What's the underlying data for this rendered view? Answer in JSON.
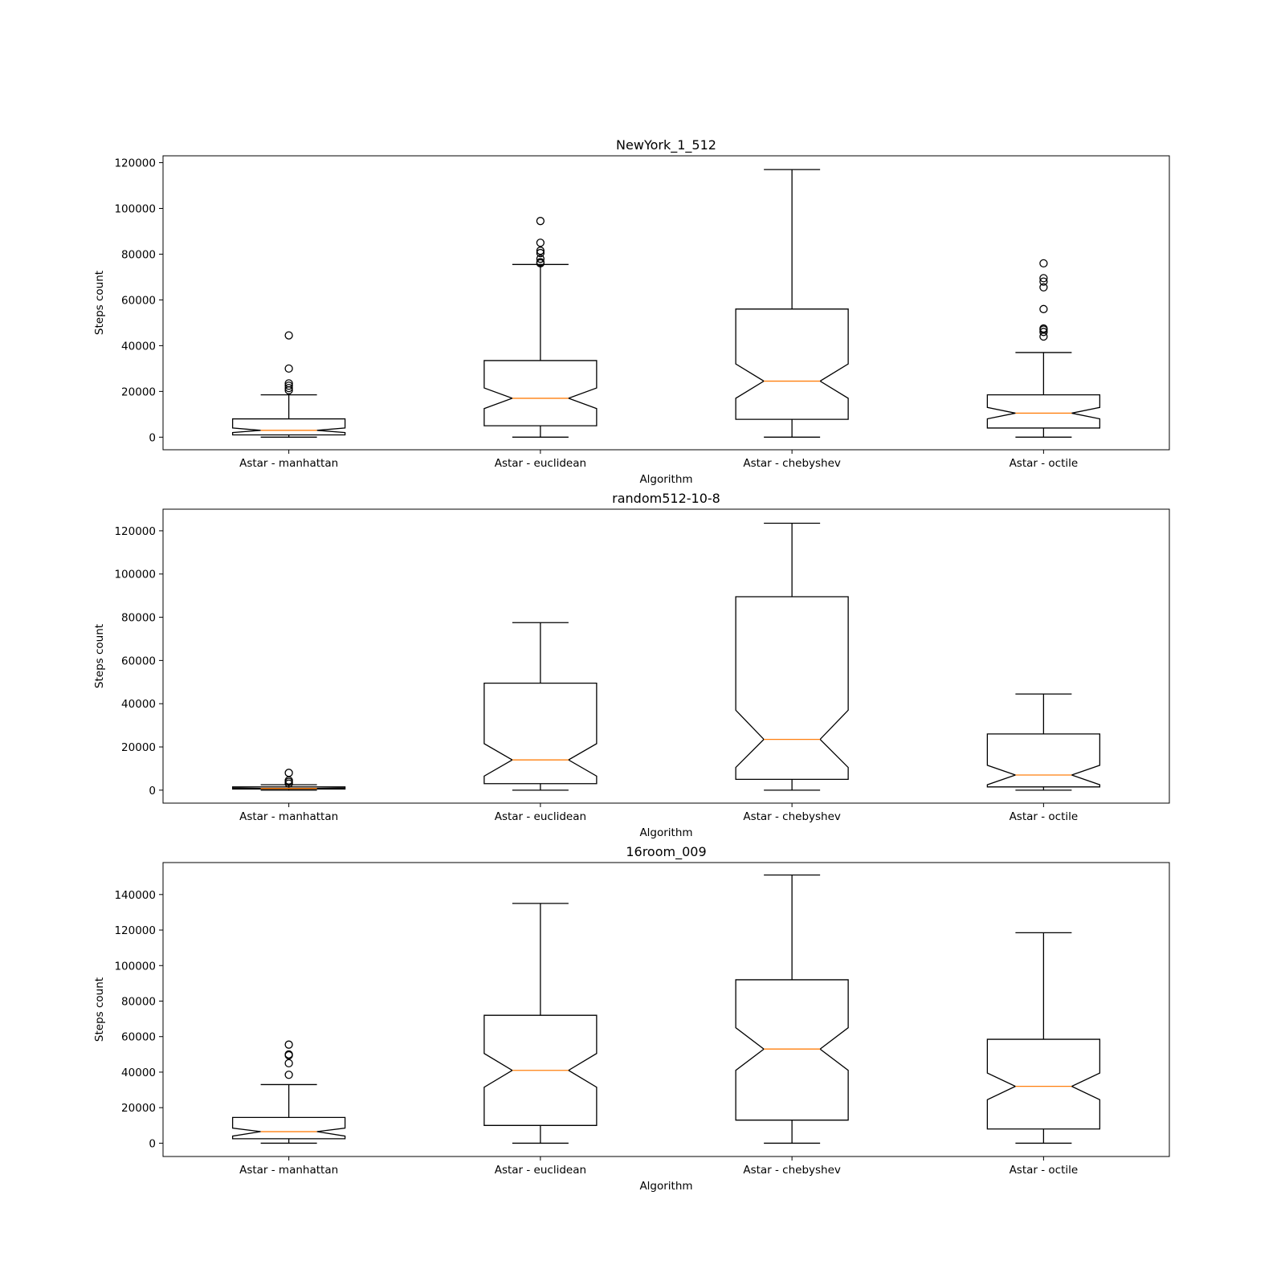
{
  "chart_data": [
    {
      "type": "boxplot",
      "title": "NewYork_1_512",
      "xlabel": "Algorithm",
      "ylabel": "Steps count",
      "ylim": [
        -5500,
        123000
      ],
      "yticks": [
        0,
        20000,
        40000,
        60000,
        80000,
        100000,
        120000
      ],
      "notched": true,
      "median_color": "#ff7f0e",
      "categories": [
        "Astar - manhattan",
        "Astar - euclidean",
        "Astar - chebyshev",
        "Astar - octile"
      ],
      "boxes": [
        {
          "whisker_low": 0,
          "q1": 1000,
          "median": 3000,
          "q3": 8000,
          "whisker_high": 18500,
          "notch_low": 2000,
          "notch_high": 4000,
          "outliers": [
            20500,
            21500,
            22500,
            23500,
            30000,
            44500
          ]
        },
        {
          "whisker_low": 0,
          "q1": 5000,
          "median": 17000,
          "q3": 33500,
          "whisker_high": 75500,
          "notch_low": 12500,
          "notch_high": 21500,
          "outliers": [
            76000,
            76500,
            78000,
            80500,
            81500,
            85000,
            94500
          ]
        },
        {
          "whisker_low": 0,
          "q1": 7800,
          "median": 24500,
          "q3": 56000,
          "whisker_high": 117000,
          "notch_low": 17000,
          "notch_high": 32000,
          "outliers": []
        },
        {
          "whisker_low": 0,
          "q1": 4000,
          "median": 10500,
          "q3": 18500,
          "whisker_high": 37000,
          "notch_low": 8000,
          "notch_high": 13000,
          "outliers": [
            44000,
            46000,
            47000,
            47500,
            56000,
            65500,
            68000,
            69500,
            76000
          ]
        }
      ]
    },
    {
      "type": "boxplot",
      "title": "random512-10-8",
      "xlabel": "Algorithm",
      "ylabel": "Steps count",
      "ylim": [
        -6000,
        130000
      ],
      "yticks": [
        0,
        20000,
        40000,
        60000,
        80000,
        100000,
        120000
      ],
      "notched": true,
      "median_color": "#ff7f0e",
      "categories": [
        "Astar - manhattan",
        "Astar - euclidean",
        "Astar - chebyshev",
        "Astar - octile"
      ],
      "boxes": [
        {
          "whisker_low": 0,
          "q1": 500,
          "median": 800,
          "q3": 1500,
          "whisker_high": 2500,
          "notch_low": 600,
          "notch_high": 1000,
          "outliers": [
            3000,
            3800,
            4500,
            8000
          ]
        },
        {
          "whisker_low": 0,
          "q1": 3000,
          "median": 14000,
          "q3": 49500,
          "whisker_high": 77500,
          "notch_low": 6500,
          "notch_high": 21500,
          "outliers": []
        },
        {
          "whisker_low": 0,
          "q1": 5000,
          "median": 23500,
          "q3": 89500,
          "whisker_high": 123500,
          "notch_low": 10500,
          "notch_high": 37000,
          "outliers": []
        },
        {
          "whisker_low": 0,
          "q1": 1500,
          "median": 7000,
          "q3": 26000,
          "whisker_high": 44500,
          "notch_low": 2500,
          "notch_high": 11500,
          "outliers": []
        }
      ]
    },
    {
      "type": "boxplot",
      "title": "16room_009",
      "xlabel": "Algorithm",
      "ylabel": "Steps count",
      "ylim": [
        -7500,
        158000
      ],
      "yticks": [
        0,
        20000,
        40000,
        60000,
        80000,
        100000,
        120000,
        140000
      ],
      "notched": true,
      "median_color": "#ff7f0e",
      "categories": [
        "Astar - manhattan",
        "Astar - euclidean",
        "Astar - chebyshev",
        "Astar - octile"
      ],
      "boxes": [
        {
          "whisker_low": 0,
          "q1": 2500,
          "median": 6500,
          "q3": 14500,
          "whisker_high": 33000,
          "notch_low": 4000,
          "notch_high": 8500,
          "outliers": [
            38500,
            45000,
            49500,
            50000,
            55500
          ]
        },
        {
          "whisker_low": 0,
          "q1": 10000,
          "median": 41000,
          "q3": 72000,
          "whisker_high": 135000,
          "notch_low": 31500,
          "notch_high": 50500,
          "outliers": []
        },
        {
          "whisker_low": 0,
          "q1": 13000,
          "median": 53000,
          "q3": 92000,
          "whisker_high": 151000,
          "notch_low": 41000,
          "notch_high": 65000,
          "outliers": []
        },
        {
          "whisker_low": 0,
          "q1": 8000,
          "median": 32000,
          "q3": 58500,
          "whisker_high": 118500,
          "notch_low": 24500,
          "notch_high": 39500,
          "outliers": []
        }
      ]
    }
  ]
}
